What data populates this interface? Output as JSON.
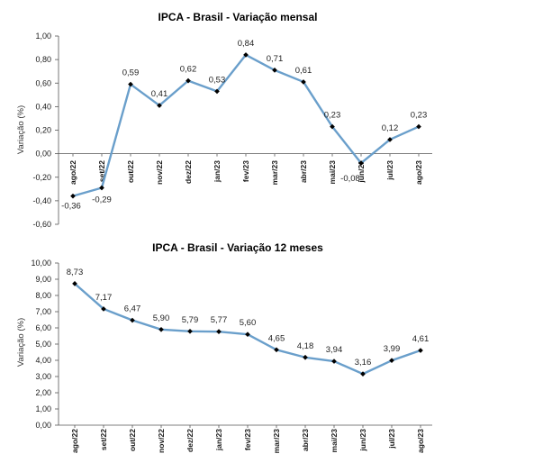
{
  "chart_data": [
    {
      "type": "line",
      "title": "IPCA - Brasil - Variação mensal",
      "ylabel": "Variação (%)",
      "xlabel": "",
      "categories": [
        "ago/22",
        "set/22",
        "out/22",
        "nov/22",
        "dez/22",
        "jan/23",
        "fev/23",
        "mar/23",
        "abr/23",
        "mai/23",
        "jun/23",
        "jul/23",
        "ago/23"
      ],
      "values": [
        -0.36,
        -0.29,
        0.59,
        0.41,
        0.62,
        0.53,
        0.84,
        0.71,
        0.61,
        0.23,
        -0.08,
        0.12,
        0.23
      ],
      "value_labels": [
        "-0,36",
        "-0,29",
        "0,59",
        "0,41",
        "0,62",
        "0,53",
        "0,84",
        "0,71",
        "0,61",
        "0,23",
        "-0,08",
        "0,12",
        "0,23"
      ],
      "ylim": [
        -0.6,
        1.0
      ],
      "yticks": [
        1.0,
        0.8,
        0.6,
        0.4,
        0.2,
        0.0,
        -0.2,
        -0.4,
        -0.6
      ],
      "ytick_labels": [
        "1,00",
        "0,80",
        "0,60",
        "0,40",
        "0,20",
        "0,00",
        "-0,20",
        "-0,40",
        "-0,60"
      ],
      "line_color": "#6a9fcb",
      "marker_color": "#000000",
      "grid": false
    },
    {
      "type": "line",
      "title": "IPCA - Brasil - Variação 12 meses",
      "ylabel": "Variação (%)",
      "xlabel": "",
      "categories": [
        "ago/22",
        "set/22",
        "out/22",
        "nov/22",
        "dez/22",
        "jan/23",
        "fev/23",
        "mar/23",
        "abr/23",
        "mai/23",
        "jun/23",
        "jul/23",
        "ago/23"
      ],
      "values": [
        8.73,
        7.17,
        6.47,
        5.9,
        5.79,
        5.77,
        5.6,
        4.65,
        4.18,
        3.94,
        3.16,
        3.99,
        4.61
      ],
      "value_labels": [
        "8,73",
        "7,17",
        "6,47",
        "5,90",
        "5,79",
        "5,77",
        "5,60",
        "4,65",
        "4,18",
        "3,94",
        "3,16",
        "3,99",
        "4,61"
      ],
      "ylim": [
        0,
        10
      ],
      "yticks": [
        10,
        9,
        8,
        7,
        6,
        5,
        4,
        3,
        2,
        1,
        0
      ],
      "ytick_labels": [
        "10,00",
        "9,00",
        "8,00",
        "7,00",
        "6,00",
        "5,00",
        "4,00",
        "3,00",
        "2,00",
        "1,00",
        "0,00"
      ],
      "line_color": "#6a9fcb",
      "marker_color": "#000000",
      "grid": false
    }
  ]
}
